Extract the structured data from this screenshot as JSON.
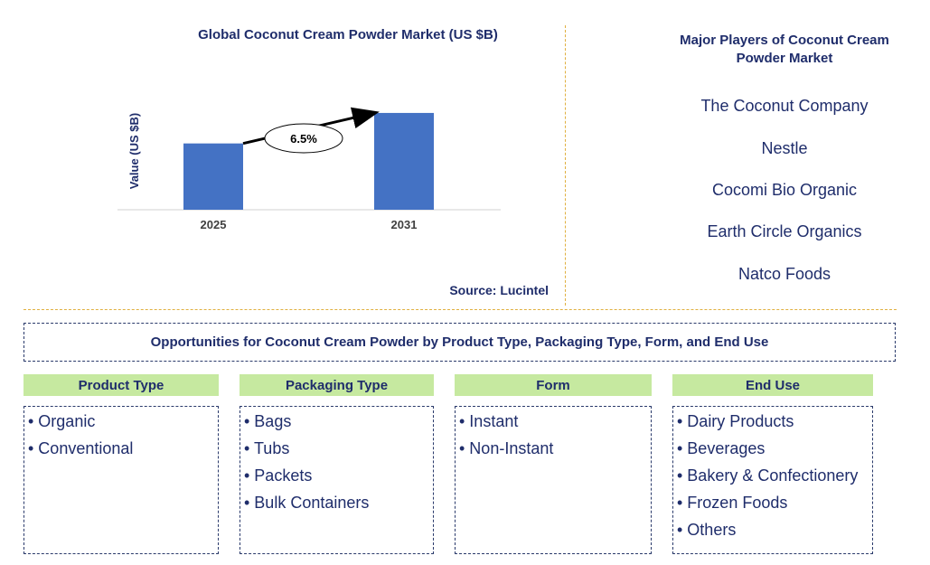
{
  "chart_data": {
    "type": "bar",
    "title": "Global Coconut Cream Powder Market (US $B)",
    "ylabel": "Value (US $B)",
    "xlabel": "",
    "categories": [
      "2025",
      "2031"
    ],
    "values": [
      1.0,
      1.46
    ],
    "ylim": [
      0,
      1.5
    ],
    "annotation": "6.5%",
    "color": "#4472c4"
  },
  "source": "Source: Lucintel",
  "players": {
    "title": "Major Players of Coconut Cream Powder Market",
    "items": [
      "The Coconut Company",
      "Nestle",
      "Cocomi Bio Organic",
      "Earth Circle Organics",
      "Natco Foods"
    ]
  },
  "opportunities": {
    "title": "Opportunities for Coconut Cream Powder by Product Type, Packaging Type, Form, and End Use",
    "categories": [
      {
        "header": "Product Type",
        "items": [
          "• Organic",
          "• Conventional"
        ]
      },
      {
        "header": "Packaging Type",
        "items": [
          "• Bags",
          "• Tubs",
          "• Packets",
          "• Bulk Containers"
        ]
      },
      {
        "header": "Form",
        "items": [
          "• Instant",
          "• Non-Instant"
        ]
      },
      {
        "header": "End Use",
        "items": [
          "• Dairy Products",
          "• Beverages",
          "• Bakery & Confectionery",
          "• Frozen Foods",
          "• Others"
        ]
      }
    ]
  }
}
